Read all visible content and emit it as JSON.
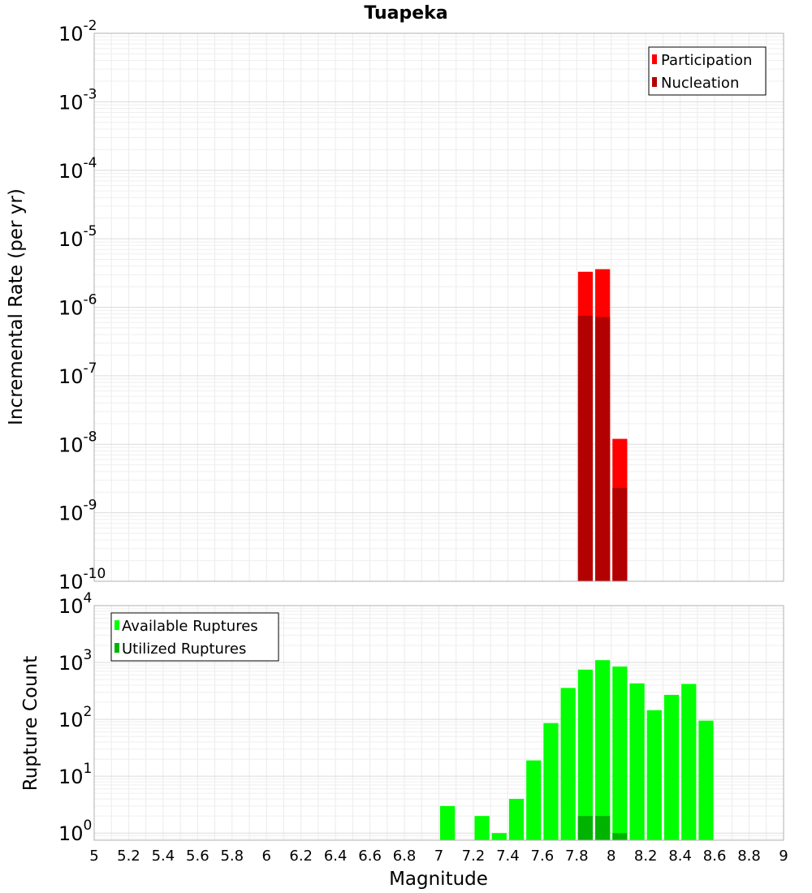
{
  "figure_title": "Tuapeka",
  "chart_data": [
    {
      "type": "bar",
      "id": "rate",
      "title": "Tuapeka",
      "xlabel": "",
      "ylabel": "Incremental Rate (per yr)",
      "yscale": "log",
      "xlim": [
        5,
        9
      ],
      "ylim": [
        1e-10,
        0.01
      ],
      "bin_width": 0.1,
      "y_ticks": [
        {
          "base": "10",
          "exp": "-2"
        },
        {
          "base": "10",
          "exp": "-3"
        },
        {
          "base": "10",
          "exp": "-4"
        },
        {
          "base": "10",
          "exp": "-5"
        },
        {
          "base": "10",
          "exp": "-6"
        },
        {
          "base": "10",
          "exp": "-7"
        },
        {
          "base": "10",
          "exp": "-8"
        },
        {
          "base": "10",
          "exp": "-9"
        },
        {
          "base": "10",
          "exp": "-10"
        }
      ],
      "legend_position": "top-right",
      "grid": true,
      "series": [
        {
          "name": "Participation",
          "color": "#ff0000",
          "x": [
            7.85,
            7.95,
            8.05
          ],
          "values": [
            3.3e-06,
            3.6e-06,
            1.2e-08
          ]
        },
        {
          "name": "Nucleation",
          "color": "#b30000",
          "x": [
            7.85,
            7.95,
            8.05
          ],
          "values": [
            7.5e-07,
            7.2e-07,
            2.3e-09
          ]
        }
      ]
    },
    {
      "type": "bar",
      "id": "count",
      "title": "",
      "xlabel": "Magnitude",
      "ylabel": "Rupture Count",
      "yscale": "log",
      "xlim": [
        5,
        9
      ],
      "ylim": [
        0.75,
        10000
      ],
      "bin_width": 0.1,
      "y_ticks": [
        {
          "base": "10",
          "exp": "4"
        },
        {
          "base": "10",
          "exp": "3"
        },
        {
          "base": "10",
          "exp": "2"
        },
        {
          "base": "10",
          "exp": "1"
        },
        {
          "base": "10",
          "exp": "0"
        }
      ],
      "x_ticks": [
        "5",
        "5.2",
        "5.4",
        "5.6",
        "5.8",
        "6",
        "6.2",
        "6.4",
        "6.6",
        "6.8",
        "7",
        "7.2",
        "7.4",
        "7.6",
        "7.8",
        "8",
        "8.2",
        "8.4",
        "8.6",
        "8.8",
        "9"
      ],
      "legend_position": "top-left",
      "grid": true,
      "series": [
        {
          "name": "Available Ruptures",
          "color": "#00ff00",
          "x": [
            7.05,
            7.25,
            7.35,
            7.45,
            7.55,
            7.65,
            7.75,
            7.85,
            7.95,
            8.05,
            8.15,
            8.25,
            8.35,
            8.45,
            8.55
          ],
          "values": [
            3,
            2,
            1,
            4,
            19,
            86,
            357,
            750,
            1100,
            850,
            430,
            145,
            270,
            420,
            95
          ]
        },
        {
          "name": "Utilized Ruptures",
          "color": "#00b300",
          "x": [
            7.85,
            7.95,
            8.05
          ],
          "values": [
            2,
            2,
            1
          ]
        }
      ]
    }
  ]
}
